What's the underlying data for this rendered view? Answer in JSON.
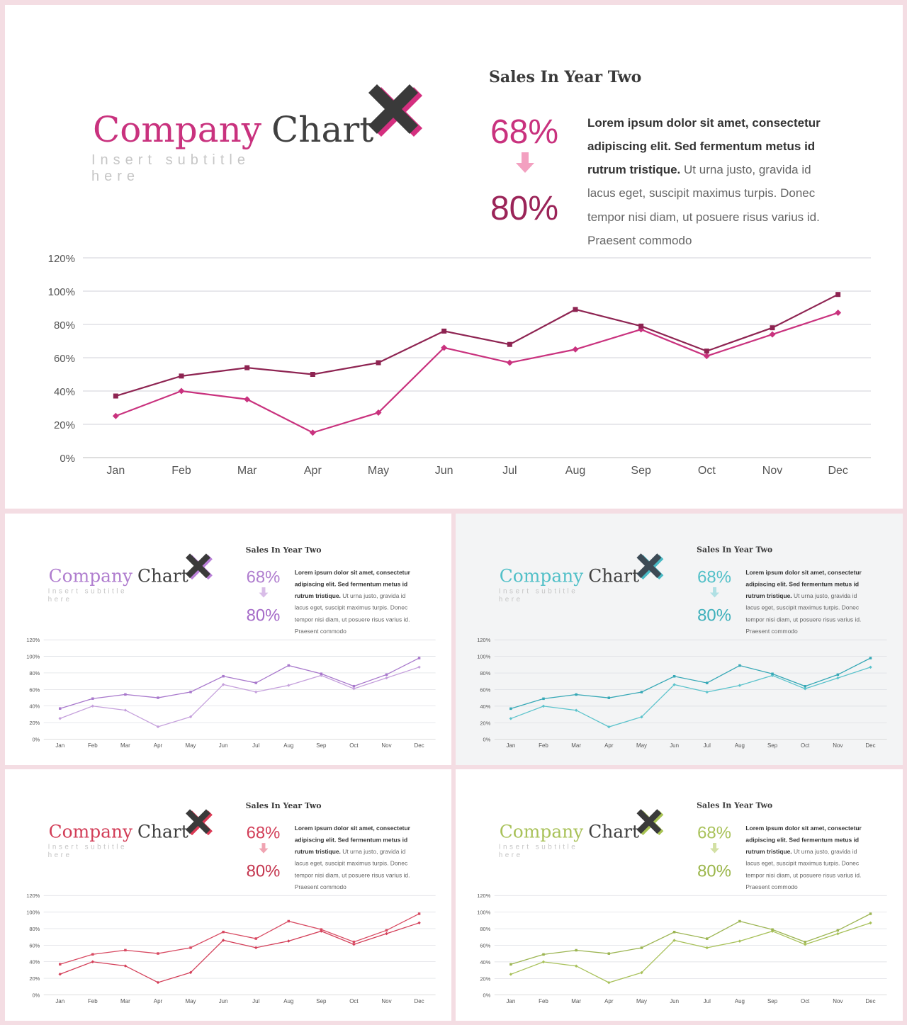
{
  "common": {
    "title_part1": "Company",
    "title_part2": "Chart",
    "subtitle_line1": "Insert subtitle",
    "subtitle_line2": "here",
    "heading": "Sales In Year Two",
    "pct_from": "68%",
    "pct_to": "80%",
    "body_bold_lines": [
      "Lorem ipsum dolor sit amet, consectetur",
      "adipiscing elit. Sed fermentum metus id",
      "rutrum tristique."
    ],
    "body_line3_rest": " Ut urna justo, gravida id",
    "body_regular_lines": [
      "lacus eget, suscipit maximus turpis. Donec",
      "tempor nisi diam, ut posuere risus varius id.",
      "Praesent commodo"
    ]
  },
  "slides": [
    {
      "id": "slide-main",
      "accent": "#c9327e",
      "accent_dark": "#9b2458",
      "arrow": "#f3a0c0",
      "series2_color": "#c9327e",
      "series1_color": "#8e2452",
      "x_icon_back": "#d42f7f",
      "x_icon_front": "#3a3a3a"
    },
    {
      "id": "slide-purple",
      "accent": "#b07ecf",
      "accent_dark": "#a56bc8",
      "arrow": "#d9bde8",
      "series2_color": "#c5a0dc",
      "series1_color": "#a878cc",
      "x_icon_back": "#b97fd8",
      "x_icon_front": "#3a3a3a"
    },
    {
      "id": "slide-teal",
      "accent": "#52c0c8",
      "accent_dark": "#3fb0bb",
      "arrow": "#b0e0e4",
      "series2_color": "#5cc3cc",
      "series1_color": "#36a8b6",
      "x_icon_back": "#48b9c4",
      "x_icon_front": "#3c4a55"
    },
    {
      "id": "slide-red",
      "accent": "#d23e58",
      "accent_dark": "#c4364f",
      "arrow": "#f0a4b2",
      "series2_color": "#d33e58",
      "series1_color": "#d84a62",
      "x_icon_back": "#dd3a55",
      "x_icon_front": "#3a3a3a"
    },
    {
      "id": "slide-green",
      "accent": "#a9c25a",
      "accent_dark": "#9bb64a",
      "arrow": "#d3e0a4",
      "series2_color": "#a8c15a",
      "series1_color": "#9cb552",
      "x_icon_back": "#a8c352",
      "x_icon_front": "#3a3a3a"
    }
  ],
  "chart_data": {
    "type": "line",
    "categories": [
      "Jan",
      "Feb",
      "Mar",
      "Apr",
      "May",
      "Jun",
      "Jul",
      "Aug",
      "Sep",
      "Oct",
      "Nov",
      "Dec"
    ],
    "series": [
      {
        "values": [
          37,
          49,
          54,
          50,
          57,
          76,
          68,
          89,
          79,
          64,
          78,
          98
        ]
      },
      {
        "values": [
          25,
          40,
          35,
          15,
          27,
          66,
          57,
          65,
          77,
          61,
          74,
          87
        ]
      }
    ],
    "y_ticks": [
      "0%",
      "20%",
      "40%",
      "60%",
      "80%",
      "100%",
      "120%"
    ],
    "ylim": [
      0,
      120
    ],
    "grid": true
  }
}
